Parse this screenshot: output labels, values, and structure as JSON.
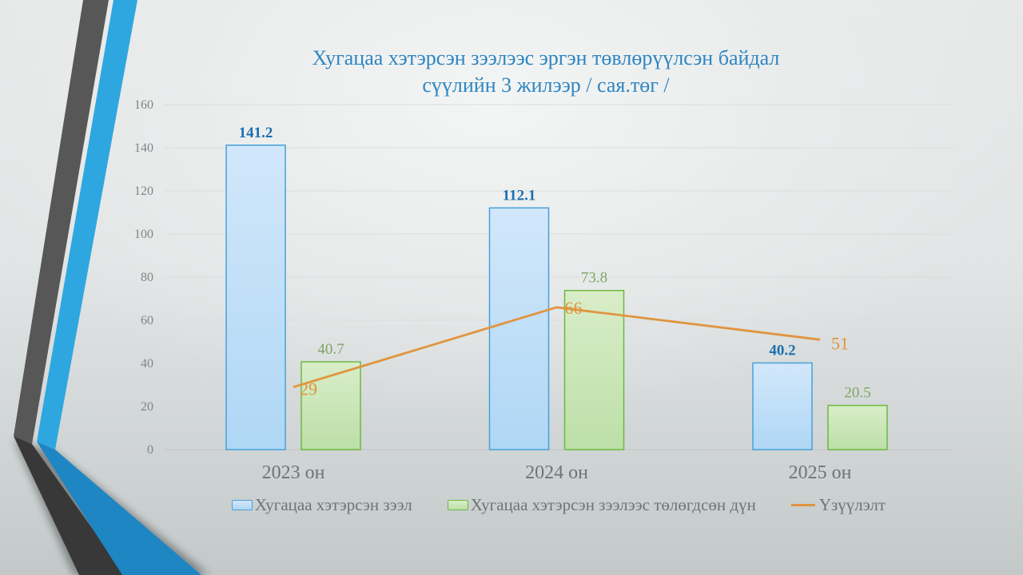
{
  "slide": {
    "title_line1": "Хугацаа хэтэрсэн зээлээс эргэн төвлөрүүлсэн байдал",
    "title_line2": "сүүлийн 3 жилээр / сая.төг /",
    "title_color": "#2E86C1"
  },
  "chart_data": {
    "type": "bar",
    "title": "Хугацаа хэтэрсэн зээлээс эргэн төвлөрүүлсэн байдал сүүлийн 3 жилээр / сая.төг /",
    "categories": [
      "2023 он",
      "2024 он",
      "2025 он"
    ],
    "series": [
      {
        "name": "Хугацаа хэтэрсэн зээл",
        "type": "bar",
        "values": [
          141.2,
          112.1,
          40.2
        ],
        "fill": "#AFD7F5",
        "fill_light": "#D2E7FA",
        "border": "#46A1DA",
        "label_color": "#1C6FAE",
        "label_bold": true
      },
      {
        "name": "Хугацаа хэтэрсэн зээлээс төлөгдсөн дүн",
        "type": "bar",
        "values": [
          40.7,
          73.8,
          20.5
        ],
        "fill": "#BCDFA8",
        "fill_light": "#D9EDC8",
        "border": "#6CB83F",
        "label_color": "#7FA468",
        "label_bold": false
      },
      {
        "name": "Үзүүлэлт",
        "type": "line",
        "values": [
          29,
          66,
          51
        ],
        "color": "#E0953F",
        "label_color": "#DE9440",
        "label_bold": false
      }
    ],
    "ylim": [
      0,
      160
    ],
    "yticks": [
      0,
      20,
      40,
      60,
      80,
      100,
      120,
      140,
      160
    ],
    "grid": true,
    "legend_position": "bottom",
    "xlabel": "",
    "ylabel": "",
    "axis_text_color": "#7F8484",
    "category_text_color": "#6F7474",
    "gridline_color": "#DBDDDD",
    "baseline_color": "#C2C6C6"
  }
}
